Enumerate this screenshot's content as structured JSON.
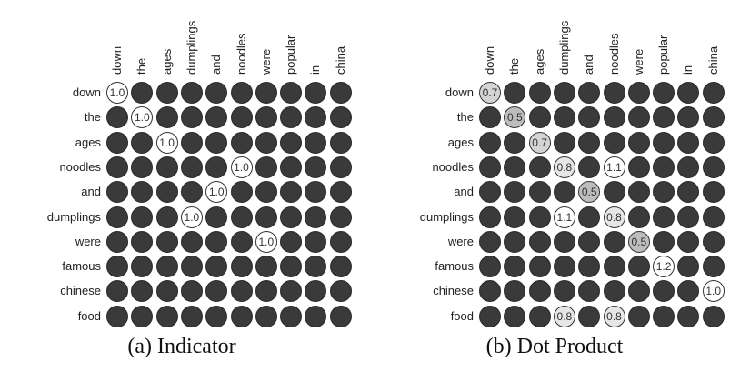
{
  "panels": [
    {
      "id": "panel-a",
      "caption": "(a)  Indicator",
      "columns": [
        "down",
        "the",
        "ages",
        "dumplings",
        "and",
        "noodles",
        "were",
        "popular",
        "in",
        "china"
      ],
      "rows": [
        "down",
        "the",
        "ages",
        "noodles",
        "and",
        "dumplings",
        "were",
        "famous",
        "chinese",
        "food"
      ],
      "highlights": [
        {
          "row": 0,
          "col": 0,
          "value": "1.0",
          "fill": "#ffffff"
        },
        {
          "row": 1,
          "col": 1,
          "value": "1.0",
          "fill": "#ffffff"
        },
        {
          "row": 2,
          "col": 2,
          "value": "1.0",
          "fill": "#ffffff"
        },
        {
          "row": 3,
          "col": 5,
          "value": "1.0",
          "fill": "#ffffff"
        },
        {
          "row": 4,
          "col": 4,
          "value": "1.0",
          "fill": "#ffffff"
        },
        {
          "row": 5,
          "col": 3,
          "value": "1.0",
          "fill": "#ffffff"
        },
        {
          "row": 6,
          "col": 6,
          "value": "1.0",
          "fill": "#ffffff"
        }
      ]
    },
    {
      "id": "panel-b",
      "caption": "(b)  Dot Product",
      "columns": [
        "down",
        "the",
        "ages",
        "dumplings",
        "and",
        "noodles",
        "were",
        "popular",
        "in",
        "china"
      ],
      "rows": [
        "down",
        "the",
        "ages",
        "noodles",
        "and",
        "dumplings",
        "were",
        "famous",
        "chinese",
        "food"
      ],
      "highlights": [
        {
          "row": 0,
          "col": 0,
          "value": "0.7",
          "fill": "#d4d4d4"
        },
        {
          "row": 1,
          "col": 1,
          "value": "0.5",
          "fill": "#bdbdbd"
        },
        {
          "row": 2,
          "col": 2,
          "value": "0.7",
          "fill": "#d4d4d4"
        },
        {
          "row": 3,
          "col": 3,
          "value": "0.8",
          "fill": "#e6e6e6"
        },
        {
          "row": 3,
          "col": 5,
          "value": "1.1",
          "fill": "#ffffff"
        },
        {
          "row": 4,
          "col": 4,
          "value": "0.5",
          "fill": "#bdbdbd"
        },
        {
          "row": 5,
          "col": 3,
          "value": "1.1",
          "fill": "#ffffff"
        },
        {
          "row": 5,
          "col": 5,
          "value": "0.8",
          "fill": "#e6e6e6"
        },
        {
          "row": 6,
          "col": 6,
          "value": "0.5",
          "fill": "#bdbdbd"
        },
        {
          "row": 7,
          "col": 7,
          "value": "1.2",
          "fill": "#ffffff"
        },
        {
          "row": 8,
          "col": 9,
          "value": "1.0",
          "fill": "#ffffff"
        },
        {
          "row": 9,
          "col": 3,
          "value": "0.8",
          "fill": "#e6e6e6"
        },
        {
          "row": 9,
          "col": 5,
          "value": "0.8",
          "fill": "#e6e6e6"
        }
      ]
    }
  ],
  "colors": {
    "empty_cell": "#3a3a3a",
    "text": "#222222"
  }
}
